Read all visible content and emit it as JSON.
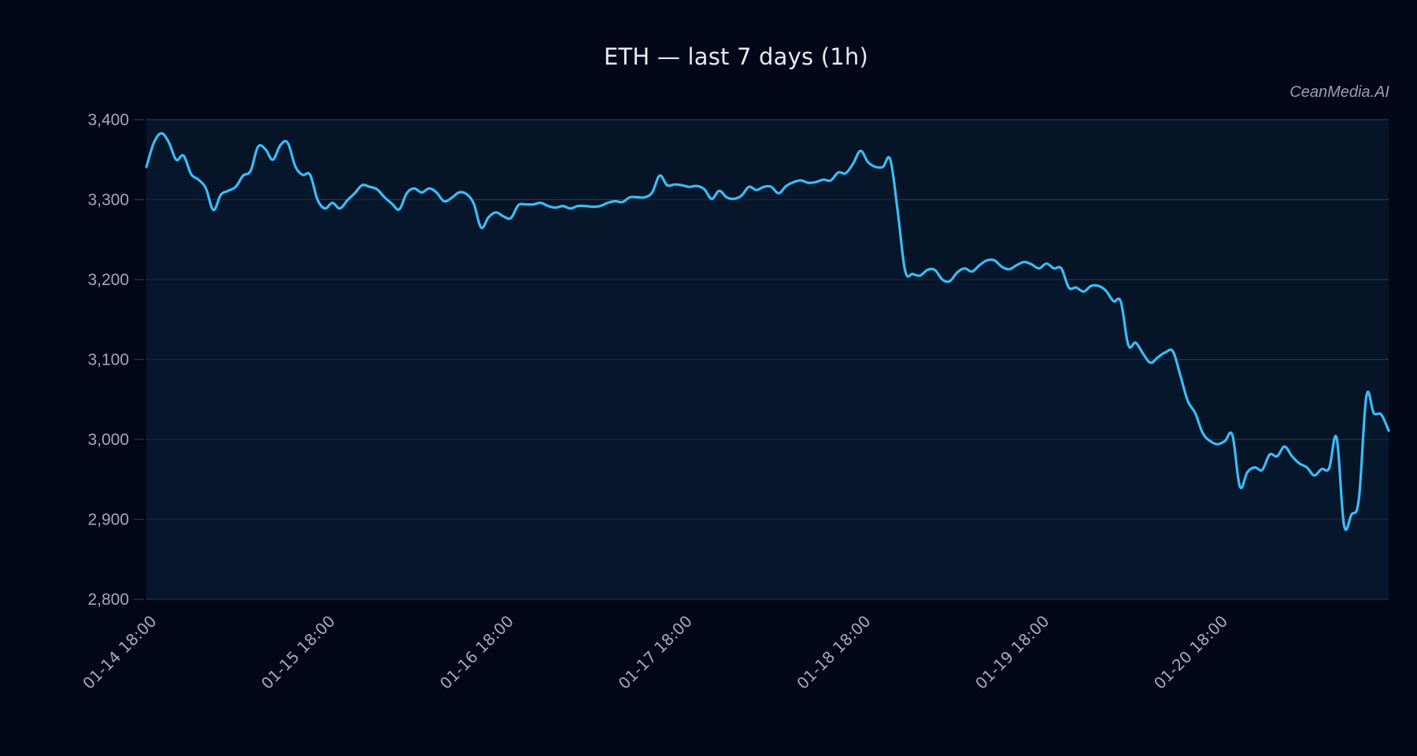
{
  "chart": {
    "title": "ETH — last 7 days (1h)",
    "watermark": "CeanMedia.AI",
    "colors": {
      "background": "#030718",
      "plot_fill": "#061427",
      "line": "#38bdf8",
      "grid": "#2b3546",
      "tick_text": "#a3a9b6",
      "title_text": "#e6e9ef"
    }
  },
  "chart_data": {
    "type": "line",
    "title": "ETH — last 7 days (1h)",
    "xlabel": "",
    "ylabel": "",
    "ylim": [
      2800,
      3400
    ],
    "yticks": [
      2800,
      2900,
      3000,
      3100,
      3200,
      3300,
      3400
    ],
    "ytick_labels": [
      "2,800",
      "2,900",
      "3,000",
      "3,100",
      "3,200",
      "3,300",
      "3,400"
    ],
    "xtick_labels": [
      "01-14 18:00",
      "01-15 18:00",
      "01-16 18:00",
      "01-17 18:00",
      "01-18 18:00",
      "01-19 18:00",
      "01-20 18:00"
    ],
    "xtick_index": [
      0,
      24,
      48,
      72,
      96,
      120,
      144
    ],
    "grid": "horizontal",
    "legend": "none",
    "area_fill": true,
    "series": [
      {
        "name": "ETH",
        "interval": "1h",
        "values": [
          3341,
          3371,
          3383,
          3372,
          3350,
          3355,
          3332,
          3325,
          3314,
          3287,
          3306,
          3311,
          3316,
          3330,
          3336,
          3366,
          3363,
          3350,
          3368,
          3371,
          3342,
          3331,
          3331,
          3300,
          3289,
          3296,
          3289,
          3299,
          3308,
          3318,
          3316,
          3313,
          3303,
          3295,
          3288,
          3308,
          3314,
          3309,
          3314,
          3309,
          3298,
          3302,
          3309,
          3307,
          3295,
          3265,
          3278,
          3284,
          3279,
          3277,
          3293,
          3294,
          3294,
          3296,
          3292,
          3290,
          3292,
          3289,
          3292,
          3292,
          3291,
          3292,
          3296,
          3298,
          3297,
          3303,
          3303,
          3303,
          3309,
          3330,
          3318,
          3319,
          3318,
          3316,
          3317,
          3313,
          3301,
          3311,
          3303,
          3301,
          3305,
          3316,
          3312,
          3316,
          3316,
          3308,
          3317,
          3322,
          3324,
          3321,
          3322,
          3325,
          3324,
          3334,
          3333,
          3345,
          3361,
          3347,
          3341,
          3341,
          3350,
          3285,
          3211,
          3207,
          3205,
          3212,
          3212,
          3200,
          3198,
          3209,
          3214,
          3210,
          3218,
          3224,
          3224,
          3216,
          3213,
          3218,
          3222,
          3219,
          3214,
          3220,
          3214,
          3214,
          3190,
          3190,
          3185,
          3192,
          3192,
          3186,
          3173,
          3172,
          3118,
          3121,
          3107,
          3096,
          3103,
          3109,
          3110,
          3080,
          3048,
          3033,
          3008,
          2998,
          2994,
          2998,
          3005,
          2941,
          2959,
          2965,
          2962,
          2981,
          2979,
          2991,
          2979,
          2970,
          2965,
          2955,
          2963,
          2964,
          3002,
          2893,
          2906,
          2926,
          3054,
          3033,
          3031,
          3011
        ]
      }
    ]
  }
}
